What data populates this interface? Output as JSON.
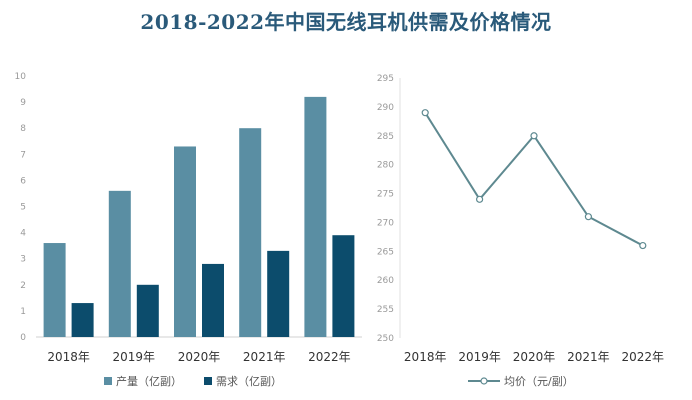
{
  "title": "2018-2022年中国无线耳机供需及价格情况",
  "colors": {
    "production": "#5a8ea3",
    "demand": "#0c4c6c",
    "price": "#5e8990",
    "title": "#2a5a7a"
  },
  "chart_data": [
    {
      "type": "bar",
      "categories": [
        "2018年",
        "2019年",
        "2020年",
        "2021年",
        "2022年"
      ],
      "series": [
        {
          "name": "产量（亿副）",
          "values": [
            3.6,
            5.6,
            7.3,
            8.0,
            9.2
          ]
        },
        {
          "name": "需求（亿副）",
          "values": [
            1.3,
            2.0,
            2.8,
            3.3,
            3.9
          ]
        }
      ],
      "ylim": [
        0,
        10
      ],
      "yticks": [
        0,
        1,
        2,
        3,
        4,
        5,
        6,
        7,
        8,
        9,
        10
      ],
      "legend": "bottom",
      "grid": false
    },
    {
      "type": "line",
      "categories": [
        "2018年",
        "2019年",
        "2020年",
        "2021年",
        "2022年"
      ],
      "series": [
        {
          "name": "均价（元/副）",
          "values": [
            289,
            274,
            285,
            271,
            266
          ]
        }
      ],
      "ylim": [
        250,
        295
      ],
      "yticks": [
        250,
        255,
        260,
        265,
        270,
        275,
        280,
        285,
        290,
        295
      ],
      "legend": "bottom",
      "grid": false
    }
  ]
}
